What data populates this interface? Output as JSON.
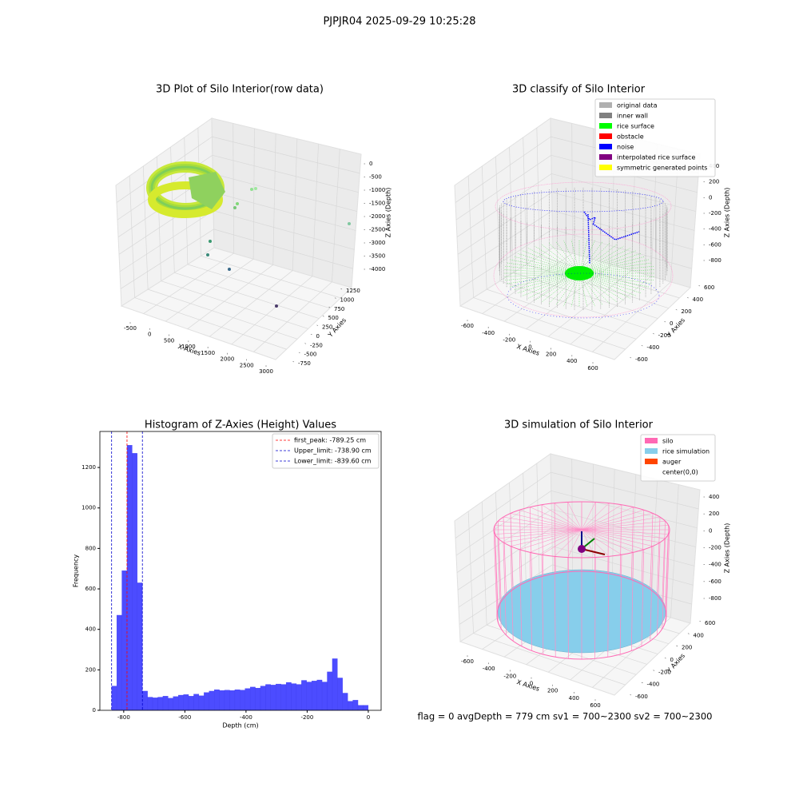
{
  "title": "PJPJR04 2025-09-29 10:25:28",
  "annotation": "flag = 0     avgDepth = 779 cm  sv1 = 700~2300  sv2 = 700~2300",
  "chart_data": [
    {
      "type": "scatter3d",
      "title": "3D Plot of Silo Interior(row data)",
      "xlabel": "X Axies",
      "ylabel": "Y Axies",
      "zlabel": "Z Axies (Depth)",
      "xticks": [
        -500,
        0,
        500,
        1000,
        1500,
        2000,
        2500,
        3000
      ],
      "yticks": [
        -750,
        -500,
        -250,
        0,
        250,
        500,
        750,
        1000,
        1250
      ],
      "zticks": [
        0,
        -500,
        -1000,
        -1500,
        -2000,
        -2500,
        -3000,
        -3500,
        -4000
      ]
    },
    {
      "type": "scatter3d",
      "title": "3D classify of Silo Interior",
      "xlabel": "X Axies",
      "ylabel": "Y Axies",
      "zlabel": "Z Axies (Depth)",
      "xticks": [
        -600,
        -400,
        -200,
        0,
        200,
        400,
        600
      ],
      "yticks": [
        -600,
        -400,
        -200,
        0,
        200,
        400,
        600
      ],
      "zticks": [
        400,
        200,
        0,
        -200,
        -400,
        -600,
        -800
      ],
      "series": [
        {
          "name": "original data",
          "color": "#b0b0b0"
        },
        {
          "name": "inner wall",
          "color": "#808080"
        },
        {
          "name": "rice surface",
          "color": "#00ff00"
        },
        {
          "name": "obstacle",
          "color": "#ff0000"
        },
        {
          "name": "noise",
          "color": "#0000ff"
        },
        {
          "name": "interpolated rice surface",
          "color": "#800080"
        },
        {
          "name": "symmetric generated points",
          "color": "#ffff00"
        }
      ]
    },
    {
      "type": "histogram",
      "title": "Histogram of Z-Axies (Height) Values",
      "xlabel": "Depth (cm)",
      "ylabel": "Frequency",
      "color": "#4c4cff",
      "bins": [
        -839.6,
        -822.8,
        -806.0,
        -789.2,
        -772.4,
        -755.6,
        -738.9,
        -722.1,
        -705.3,
        -688.5,
        -671.7,
        -654.9,
        -638.1,
        -621.3,
        -604.5,
        -587.8,
        -571.0,
        -554.2,
        -537.4,
        -520.6,
        -503.8,
        -487.0,
        -470.2,
        -453.4,
        -436.6,
        -419.9,
        -403.1,
        -386.3,
        -369.5,
        -352.7,
        -335.9,
        -319.1,
        -302.3,
        -285.5,
        -268.7,
        -252.0,
        -235.2,
        -218.4,
        -201.6,
        -184.8,
        -168.0,
        -151.2,
        -134.4,
        -117.6,
        -100.8,
        -84.0,
        -67.3,
        -50.5,
        -33.7,
        -16.9,
        -0.1
      ],
      "values": [
        120,
        470,
        690,
        1310,
        1270,
        630,
        95,
        65,
        62,
        65,
        70,
        60,
        68,
        75,
        78,
        70,
        80,
        72,
        88,
        95,
        102,
        98,
        100,
        98,
        102,
        100,
        108,
        115,
        110,
        120,
        128,
        125,
        130,
        128,
        138,
        132,
        128,
        148,
        140,
        145,
        150,
        140,
        190,
        255,
        160,
        85,
        45,
        50,
        25,
        25
      ],
      "xlim": [
        -878,
        42
      ],
      "ylim": [
        0,
        1378
      ],
      "xticks": [
        -800,
        -600,
        -400,
        -200,
        0
      ],
      "yticks": [
        0,
        200,
        400,
        600,
        800,
        1000,
        1200
      ],
      "vlines": [
        {
          "name": "first_peak: -789.25 cm",
          "value": -789.25,
          "color": "#ff0000"
        },
        {
          "name": "Upper_limit: -738.90 cm",
          "value": -738.9,
          "color": "#0000cc"
        },
        {
          "name": "Lower_limit: -839.60 cm",
          "value": -839.6,
          "color": "#0000cc"
        }
      ]
    },
    {
      "type": "scatter3d",
      "title": "3D simulation of Silo Interior",
      "xlabel": "X Axies",
      "ylabel": "Y Axies",
      "zlabel": "Z Axies (Depth)",
      "xticks": [
        -600,
        -400,
        -200,
        0,
        200,
        400,
        600
      ],
      "yticks": [
        -600,
        -400,
        -200,
        0,
        200,
        400,
        600
      ],
      "zticks": [
        400,
        200,
        0,
        -200,
        -400,
        -600,
        -800
      ],
      "series": [
        {
          "name": "silo",
          "color": "#ff69b4"
        },
        {
          "name": "rice simulation",
          "color": "#87ceeb"
        },
        {
          "name": "auger",
          "color": "#ff4500"
        },
        {
          "name": "center(0,0)",
          "color": "#ffffff"
        }
      ]
    }
  ]
}
